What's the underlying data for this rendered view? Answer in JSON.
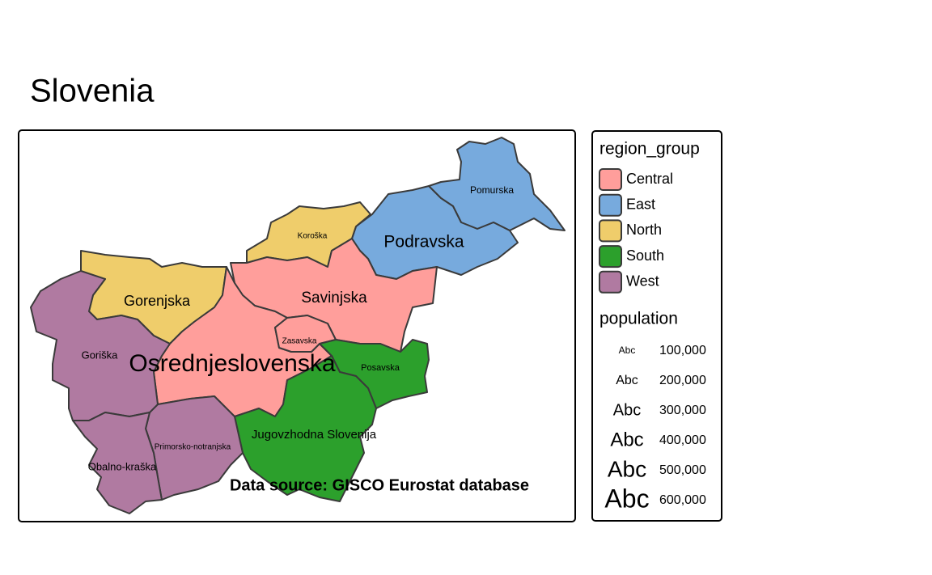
{
  "title": "Slovenia",
  "source": "Data source: GISCO Eurostat database",
  "regions": [
    {
      "name": "Pomurska",
      "group": "East"
    },
    {
      "name": "Podravska",
      "group": "East"
    },
    {
      "name": "Koroška",
      "group": "North"
    },
    {
      "name": "Gorenjska",
      "group": "North"
    },
    {
      "name": "Savinjska",
      "group": "Central"
    },
    {
      "name": "Osrednjeslovenska",
      "group": "Central"
    },
    {
      "name": "Zasavska",
      "group": "Central"
    },
    {
      "name": "Posavska",
      "group": "South"
    },
    {
      "name": "Jugovzhodna Slovenija",
      "group": "South"
    },
    {
      "name": "Primorsko-notranjska",
      "group": "West"
    },
    {
      "name": "Goriška",
      "group": "West"
    },
    {
      "name": "Obalno-kraška",
      "group": "West"
    }
  ],
  "legend": {
    "fill_title": "region_group",
    "groups": [
      {
        "name": "Central",
        "color": "#ff9e9b"
      },
      {
        "name": "East",
        "color": "#77aadd"
      },
      {
        "name": "North",
        "color": "#efcd6b"
      },
      {
        "name": "South",
        "color": "#2ca02c"
      },
      {
        "name": "West",
        "color": "#b07aa1"
      }
    ],
    "size_title": "population",
    "sample": "Abc",
    "sizes": [
      {
        "value": 100000,
        "label": "100,000"
      },
      {
        "value": 200000,
        "label": "200,000"
      },
      {
        "value": 300000,
        "label": "300,000"
      },
      {
        "value": 400000,
        "label": "400,000"
      },
      {
        "value": 500000,
        "label": "500,000"
      },
      {
        "value": 600000,
        "label": "600,000"
      }
    ]
  }
}
